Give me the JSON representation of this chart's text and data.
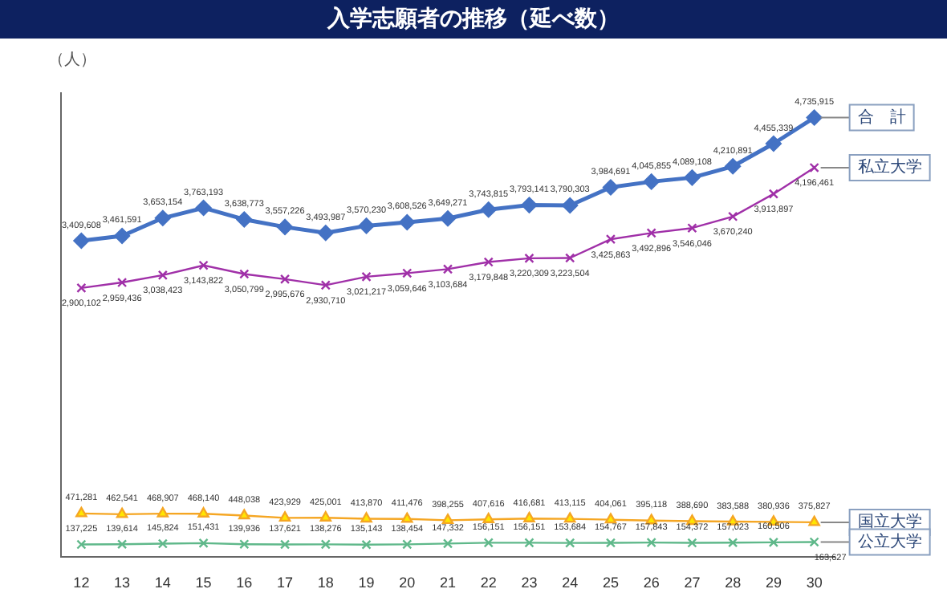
{
  "chart_data": {
    "type": "line",
    "title": "入学志願者の推移（延べ数）",
    "ylabel": "（人）",
    "categories": [
      "12",
      "13",
      "14",
      "15",
      "16",
      "17",
      "18",
      "19",
      "20",
      "21",
      "22",
      "23",
      "24",
      "25",
      "26",
      "27",
      "28",
      "29",
      "30"
    ],
    "series": [
      {
        "name": "合　計",
        "color": "#4472c4",
        "marker": "diamond",
        "values": [
          3409608,
          3461591,
          3653154,
          3763193,
          3638773,
          3557226,
          3493987,
          3570230,
          3608526,
          3649271,
          3743815,
          3793141,
          3790303,
          3984691,
          4045855,
          4089108,
          4210891,
          4455339,
          4735915
        ],
        "value_labels": [
          "3,409,608",
          "3,461,591",
          "3,653,154",
          "3,763,193",
          "3,638,773",
          "3,557,226",
          "3,493,987",
          "3,570,230",
          "3,608,526",
          "3,649,271",
          "3,743,815",
          "3,793,141",
          "3,790,303",
          "3,984,691",
          "4,045,855",
          "4,089,108",
          "4,210,891",
          "4,455,339",
          "4,735,915"
        ]
      },
      {
        "name": "私立大学",
        "color": "#a030a8",
        "marker": "cross",
        "values": [
          2900102,
          2959436,
          3038423,
          3143822,
          3050799,
          2995676,
          2930710,
          3021217,
          3059646,
          3103684,
          3179848,
          3220309,
          3223504,
          3425863,
          3492896,
          3546046,
          3670240,
          3913897,
          4196461
        ],
        "value_labels": [
          "2,900,102",
          "2,959,436",
          "3,038,423",
          "3,143,822",
          "3,050,799",
          "2,995,676",
          "2,930,710",
          "3,021,217",
          "3,059,646",
          "3,103,684",
          "3,179,848",
          "3,220,309",
          "3,223,504",
          "3,425,863",
          "3,492,896",
          "3,546,046",
          "3,670,240",
          "3,913,897",
          "4,196,461"
        ]
      },
      {
        "name": "国立大学",
        "color": "#f5a623",
        "marker": "triangle",
        "values": [
          471281,
          462541,
          468907,
          468140,
          448038,
          423929,
          425001,
          413870,
          411476,
          398255,
          407616,
          416681,
          413115,
          404061,
          395118,
          388690,
          383588,
          380936,
          375827
        ],
        "value_labels": [
          "471,281",
          "462,541",
          "468,907",
          "468,140",
          "448,038",
          "423,929",
          "425,001",
          "413,870",
          "411,476",
          "398,255",
          "407,616",
          "416,681",
          "413,115",
          "404,061",
          "395,118",
          "388,690",
          "383,588",
          "380,936",
          "375,827"
        ]
      },
      {
        "name": "公立大学",
        "color": "#5fb88a",
        "marker": "cross",
        "values": [
          137225,
          139614,
          145824,
          151431,
          139936,
          137621,
          138276,
          135143,
          138454,
          147332,
          156151,
          156151,
          153684,
          154767,
          157843,
          154372,
          157023,
          160506,
          163627
        ],
        "value_labels": [
          "137,225",
          "139,614",
          "145,824",
          "151,431",
          "139,936",
          "137,621",
          "138,276",
          "135,143",
          "138,454",
          "147,332",
          "156,151",
          "156,151",
          "153,684",
          "154,767",
          "157,843",
          "154,372",
          "157,023",
          "160,506",
          "163,627"
        ]
      }
    ],
    "legend": false,
    "grid": false,
    "tick_labels": "x"
  }
}
